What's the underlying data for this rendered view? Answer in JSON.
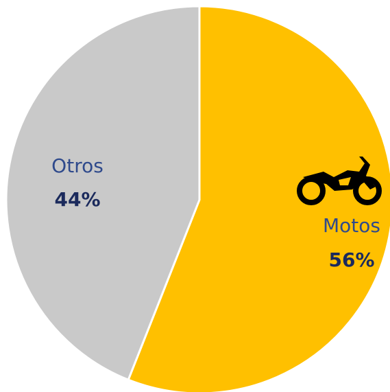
{
  "chart_data": {
    "type": "pie",
    "categories": [
      "Motos",
      "Otros"
    ],
    "values": [
      56,
      44
    ],
    "value_labels": [
      "56%",
      "44%"
    ],
    "colors": [
      "#FFC000",
      "#C9C9C9"
    ]
  }
}
